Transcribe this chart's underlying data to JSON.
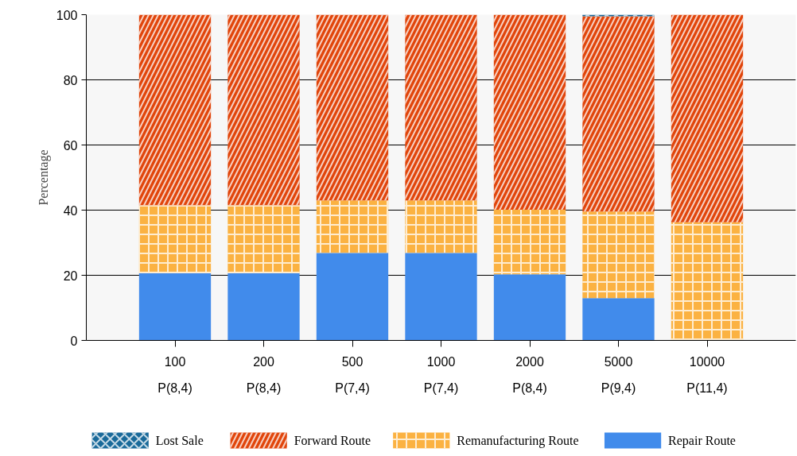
{
  "chart_data": {
    "type": "bar",
    "stacked": true,
    "ylabel": "Percentage",
    "categories": [
      "100\nP(8,4)",
      "200\nP(8,4)",
      "500\nP(7,4)",
      "1000\nP(7,4)",
      "2000\nP(8,4)",
      "5000\nP(9,4)",
      "10000\nP(11,4)"
    ],
    "series": [
      {
        "name": "Repair Route",
        "color": "#418beb",
        "values": [
          20.6,
          20.6,
          26.9,
          26.9,
          20.3,
          13.0,
          0
        ]
      },
      {
        "name": "Remanufacturing Route",
        "color": "#fbb242",
        "values": [
          20.9,
          20.9,
          16.1,
          16.1,
          19.8,
          26.6,
          36.3
        ]
      },
      {
        "name": "Forward Route",
        "color": "#e1450b",
        "values": [
          58.5,
          58.5,
          57.0,
          57.0,
          59.9,
          59.9,
          63.7
        ]
      },
      {
        "name": "Lost Sale",
        "color": "#1a6a9a",
        "values": [
          0,
          0,
          0,
          0,
          0,
          0.5,
          0
        ]
      }
    ],
    "ylim": [
      0,
      100
    ],
    "yticks": [
      0,
      20,
      40,
      60,
      80,
      100
    ],
    "grid": "y",
    "legend": "bottom"
  }
}
